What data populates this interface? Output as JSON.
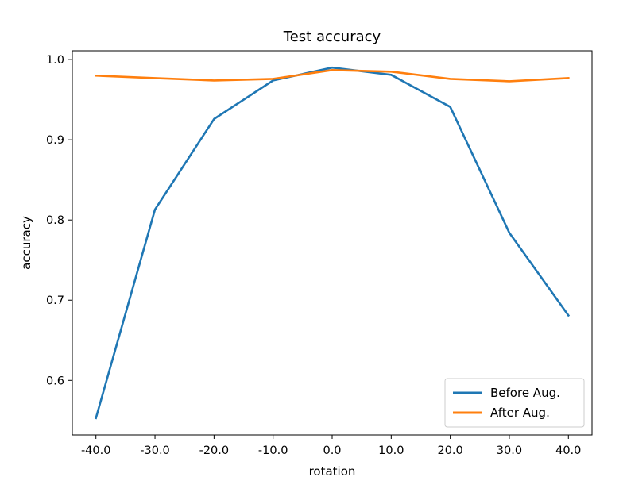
{
  "chart_data": {
    "type": "line",
    "title": "Test accuracy",
    "xlabel": "rotation",
    "ylabel": "accuracy",
    "x": [
      -40,
      -30,
      -20,
      -10,
      0,
      10,
      20,
      30,
      40
    ],
    "x_tick_labels": [
      "-40.0",
      "-30.0",
      "-20.0",
      "-10.0",
      "0.0",
      "10.0",
      "20.0",
      "30.0",
      "40.0"
    ],
    "y_ticks": [
      0.6,
      0.7,
      0.8,
      0.9,
      1.0
    ],
    "y_tick_labels": [
      "0.6",
      "0.7",
      "0.8",
      "0.9",
      "1.0"
    ],
    "xlim": [
      -44,
      44
    ],
    "ylim": [
      0.532,
      1.011
    ],
    "grid": false,
    "legend_position": "lower-right",
    "series": [
      {
        "name": "Before Aug.",
        "color": "#1f77b4",
        "values": [
          0.553,
          0.813,
          0.926,
          0.974,
          0.99,
          0.981,
          0.941,
          0.784,
          0.681
        ]
      },
      {
        "name": "After Aug.",
        "color": "#ff7f0e",
        "values": [
          0.98,
          0.977,
          0.974,
          0.976,
          0.987,
          0.985,
          0.976,
          0.973,
          0.977
        ]
      }
    ]
  }
}
